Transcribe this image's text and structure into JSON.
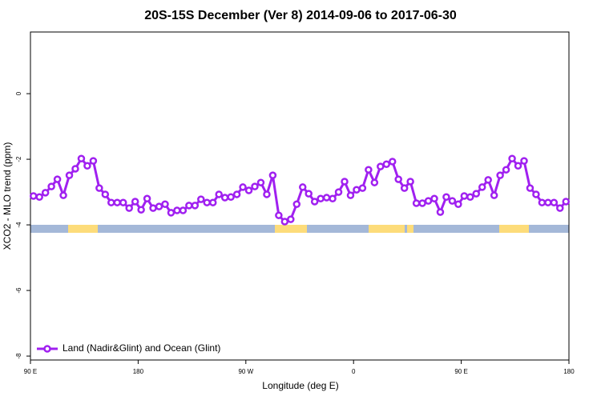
{
  "chart_data": {
    "type": "line",
    "title": "20S-15S December (Ver 8)   2014-09-06 to 2017-06-30",
    "x_label": "Longitude (deg E)",
    "y_label": "XCO2 - MLO trend (ppm)",
    "xlim": [
      90,
      540
    ],
    "ylim": [
      -8.12,
      1.88
    ],
    "xticks": [
      {
        "value": 90,
        "label": "90 E"
      },
      180,
      {
        "value": 270,
        "label": "90 W"
      },
      {
        "value": 360,
        "label": "0"
      },
      {
        "value": 450,
        "label": "90 E"
      },
      {
        "value": 540,
        "label": "180"
      }
    ],
    "yticks": [
      0,
      -2,
      -4,
      -6,
      -8
    ],
    "legend": "bottom-left",
    "x": [
      92.5,
      97.5,
      102.5,
      107.5,
      112.5,
      117.5,
      122.5,
      127.5,
      132.5,
      137.5,
      142.5,
      147.5,
      152.5,
      157.5,
      162.5,
      167.5,
      172.5,
      177.5,
      182.5,
      187.5,
      192.5,
      197.5,
      202.5,
      207.5,
      212.5,
      217.5,
      222.5,
      227.5,
      232.5,
      237.5,
      242.5,
      247.5,
      252.5,
      257.5,
      262.5,
      267.5,
      272.5,
      277.5,
      282.5,
      287.5,
      292.5,
      297.5,
      302.5,
      307.5,
      312.5,
      317.5,
      322.5,
      327.5,
      332.5,
      337.5,
      342.5,
      347.5,
      352.5,
      357.5,
      362.5,
      367.5,
      372.5,
      377.5,
      382.5,
      387.5,
      392.5,
      397.5,
      402.5,
      407.5,
      412.5,
      417.5,
      422.5,
      427.5,
      432.5,
      437.5,
      442.5,
      447.5,
      452.5,
      457.5,
      462.5,
      467.5,
      472.5,
      477.5,
      482.5,
      487.5,
      492.5,
      497.5,
      502.5,
      507.5,
      512.5,
      517.5,
      522.5,
      527.5,
      532.5,
      537.5
    ],
    "series": [
      {
        "name": "Land (Nadir&Glint) and Ocean (Glint)",
        "color": "#a020f0",
        "values": [
          -3.12,
          -3.15,
          -3.02,
          -2.83,
          -2.61,
          -3.1,
          -2.49,
          -2.29,
          -1.98,
          -2.2,
          -2.05,
          -2.88,
          -3.07,
          -3.32,
          -3.32,
          -3.32,
          -3.49,
          -3.29,
          -3.54,
          -3.2,
          -3.49,
          -3.44,
          -3.37,
          -3.63,
          -3.56,
          -3.56,
          -3.41,
          -3.41,
          -3.22,
          -3.32,
          -3.32,
          -3.07,
          -3.17,
          -3.15,
          -3.07,
          -2.85,
          -2.95,
          -2.83,
          -2.71,
          -3.07,
          -2.49,
          -3.71,
          -3.9,
          -3.83,
          -3.37,
          -2.85,
          -3.05,
          -3.29,
          -3.2,
          -3.17,
          -3.2,
          -3.0,
          -2.68,
          -3.1,
          -2.93,
          -2.88,
          -2.32,
          -2.71,
          -2.22,
          -2.15,
          -2.07,
          -2.61,
          -2.88,
          -2.68,
          -3.34,
          -3.34,
          -3.27,
          -3.2,
          -3.61,
          -3.15,
          -3.27,
          -3.37,
          -3.12,
          -3.15,
          -3.05,
          -2.85,
          -2.63,
          -3.1,
          -2.49,
          -2.32,
          -1.98,
          -2.2,
          -2.05,
          -2.88,
          -3.07,
          -3.32,
          -3.32,
          -3.32,
          -3.49,
          -3.29
        ]
      }
    ]
  }
}
